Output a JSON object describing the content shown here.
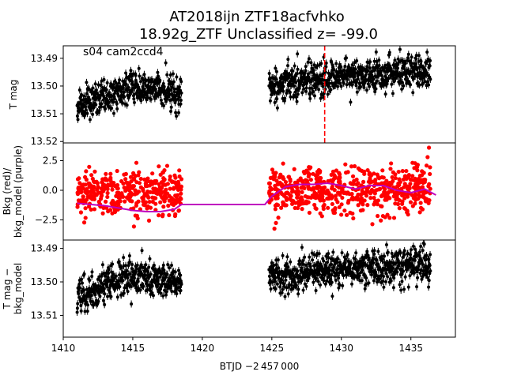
{
  "title": {
    "line1": "AT2018ijn  ZTF18acfvhko",
    "line2": "18.92g_ZTF Unclassified z= -99.0"
  },
  "annotation": "s04 cam2ccd4",
  "xlabel": "BTJD −2 457 000",
  "colors": {
    "flux": "#000000",
    "bkg": "#ff0000",
    "bkg_model": "#bf00bf",
    "marker_line": "#ff0000"
  },
  "chart_data": [
    {
      "type": "scatter",
      "panel": "top",
      "ylabel": "T mag",
      "xlim": [
        1410,
        1438.2
      ],
      "ylim": [
        13.5205,
        13.4855
      ],
      "yinverted": true,
      "yticks": [
        13.49,
        13.5,
        13.51,
        13.52
      ],
      "yticklabels": [
        "13.49",
        "13.50",
        "13.51",
        "13.52"
      ],
      "series": [
        {
          "kind": "points-with-errorbars",
          "color": "#000000",
          "segments": [
            {
              "x_start": 1411.0,
              "x_end": 1418.5,
              "mag_start": 13.508,
              "mag_mid": 13.5,
              "mag_end": 13.503,
              "scatter": 0.003
            },
            {
              "x_start": 1424.8,
              "x_end": 1436.4,
              "mag_start": 13.5,
              "mag_mid": 13.496,
              "mag_end": 13.495,
              "scatter": 0.003
            }
          ]
        }
      ],
      "vline": {
        "x": 1428.8,
        "style": "dashed",
        "color": "#ff0000"
      }
    },
    {
      "type": "scatter",
      "panel": "middle",
      "ylabel": "Bkg (red)/\nbkg_model (purple)",
      "xlim": [
        1410,
        1438.2
      ],
      "ylim": [
        -4.2,
        4.0
      ],
      "yticks": [
        2.5,
        0.0,
        -2.5
      ],
      "yticklabels": [
        "2.5",
        "0.0",
        "−2.5"
      ],
      "series": [
        {
          "name": "Bkg",
          "kind": "points",
          "color": "#ff0000",
          "segments": [
            {
              "x_start": 1411.0,
              "x_end": 1418.5,
              "center": -0.3,
              "spread": 1.3
            },
            {
              "x_start": 1424.8,
              "x_end": 1436.4,
              "center": 0.0,
              "spread": 1.3
            }
          ],
          "outliers": [
            {
              "x": 1436.3,
              "y": 3.6
            },
            {
              "x": 1436.2,
              "y": 2.8
            }
          ]
        },
        {
          "name": "bkg_model",
          "kind": "line",
          "color": "#bf00bf",
          "points": [
            [
              1411.0,
              -1.1
            ],
            [
              1412.0,
              -1.2
            ],
            [
              1413.0,
              -1.3
            ],
            [
              1414.0,
              -1.5
            ],
            [
              1415.0,
              -1.7
            ],
            [
              1416.0,
              -1.8
            ],
            [
              1417.0,
              -1.8
            ],
            [
              1418.0,
              -1.6
            ],
            [
              1418.5,
              -1.2
            ],
            [
              1424.5,
              -1.2
            ],
            [
              1425.0,
              -0.5
            ],
            [
              1426.0,
              0.3
            ],
            [
              1427.0,
              0.5
            ],
            [
              1428.0,
              0.5
            ],
            [
              1429.0,
              0.6
            ],
            [
              1430.0,
              0.4
            ],
            [
              1431.0,
              0.1
            ],
            [
              1432.0,
              0.4
            ],
            [
              1433.0,
              0.4
            ],
            [
              1434.0,
              0.0
            ],
            [
              1435.0,
              -0.2
            ],
            [
              1436.0,
              0.1
            ],
            [
              1436.8,
              -0.4
            ]
          ]
        }
      ]
    },
    {
      "type": "scatter",
      "panel": "bottom",
      "ylabel": "T mag −\nbkg_model",
      "xlim": [
        1410,
        1438.2
      ],
      "ylim": [
        13.5165,
        13.4875
      ],
      "yinverted": true,
      "yticks": [
        13.49,
        13.5,
        13.51
      ],
      "yticklabels": [
        "13.49",
        "13.50",
        "13.51"
      ],
      "xticks": [
        1410,
        1415,
        1420,
        1425,
        1430,
        1435
      ],
      "xticklabels": [
        "1410",
        "1415",
        "1420",
        "1425",
        "1430",
        "1435"
      ],
      "series": [
        {
          "kind": "points-with-errorbars",
          "color": "#000000",
          "segments": [
            {
              "x_start": 1411.0,
              "x_end": 1418.5,
              "mag_start": 13.505,
              "mag_mid": 13.498,
              "mag_end": 13.5,
              "scatter": 0.0025
            },
            {
              "x_start": 1424.8,
              "x_end": 1436.4,
              "mag_start": 13.498,
              "mag_mid": 13.496,
              "mag_end": 13.495,
              "scatter": 0.0025
            }
          ]
        }
      ]
    }
  ]
}
